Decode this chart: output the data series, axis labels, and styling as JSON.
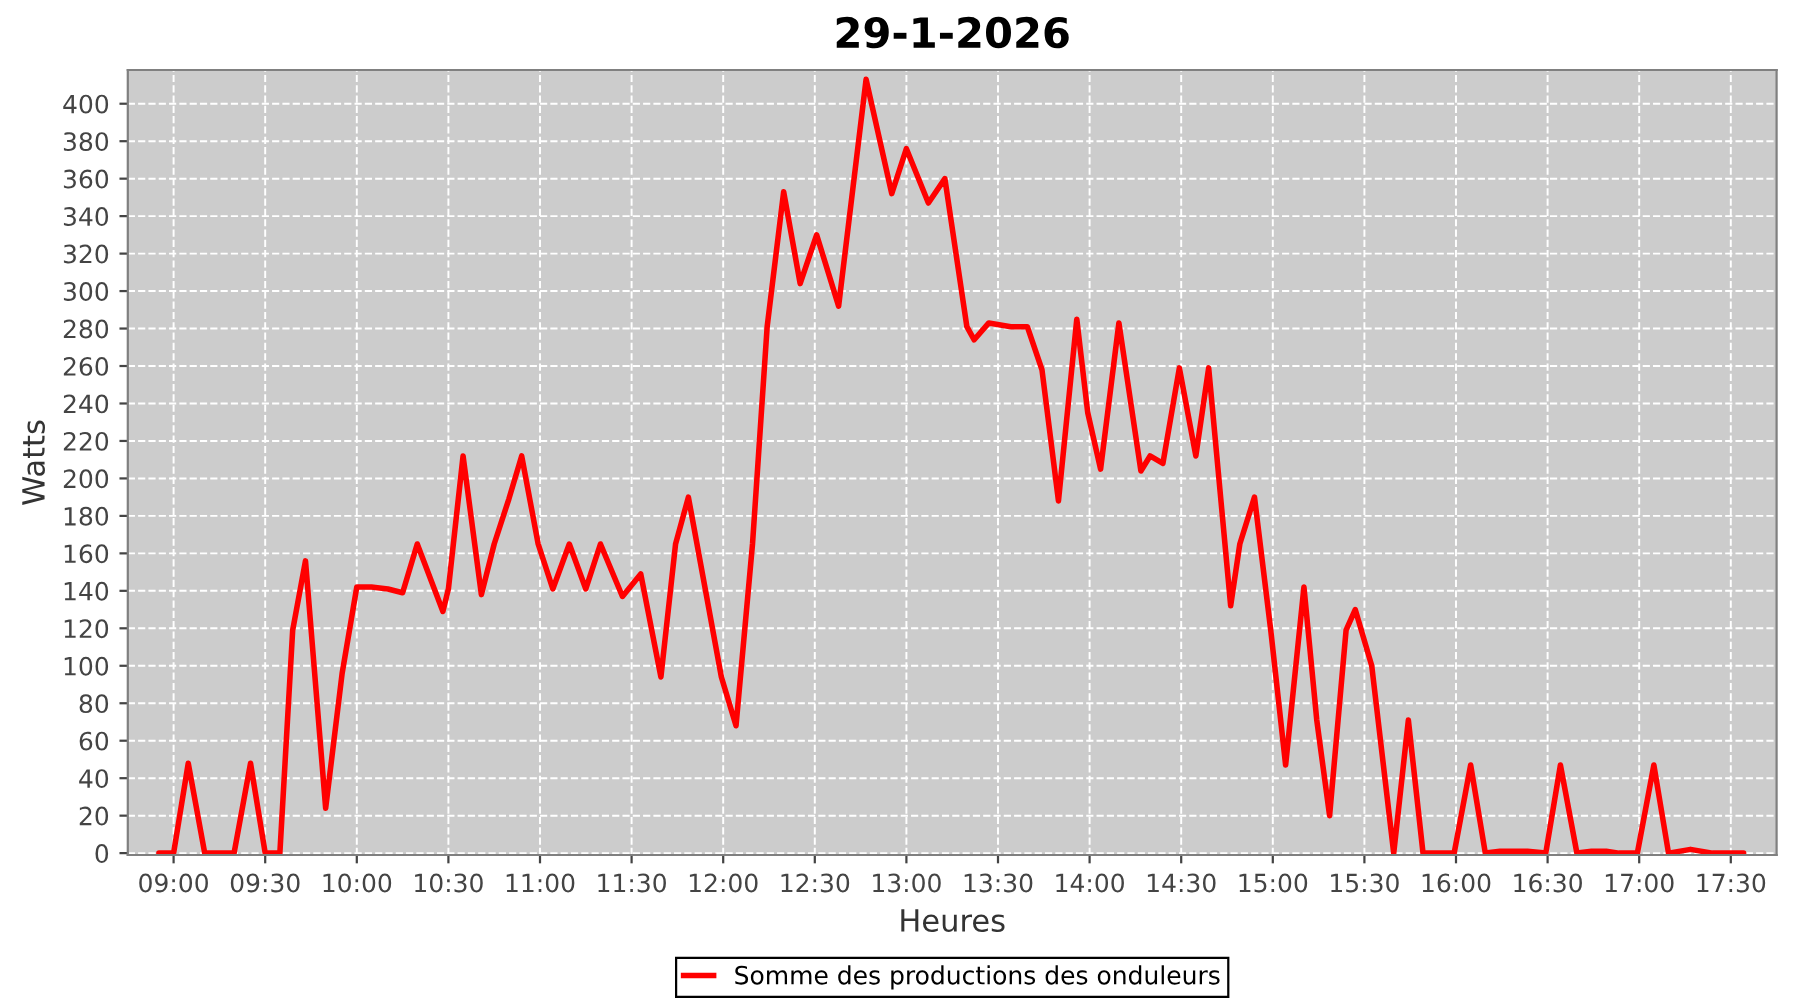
{
  "chart_data": {
    "type": "line",
    "title": "29-1-2026",
    "xlabel": "Heures",
    "ylabel": "Watts",
    "xlim": [
      8.75,
      17.75
    ],
    "ylim": [
      -1,
      418
    ],
    "xticks": [
      {
        "value": 9,
        "label": "09:00"
      },
      {
        "value": 9.5,
        "label": "09:30"
      },
      {
        "value": 10,
        "label": "10:00"
      },
      {
        "value": 10.5,
        "label": "10:30"
      },
      {
        "value": 11,
        "label": "11:00"
      },
      {
        "value": 11.5,
        "label": "11:30"
      },
      {
        "value": 12,
        "label": "12:00"
      },
      {
        "value": 12.5,
        "label": "12:30"
      },
      {
        "value": 13,
        "label": "13:00"
      },
      {
        "value": 13.5,
        "label": "13:30"
      },
      {
        "value": 14,
        "label": "14:00"
      },
      {
        "value": 14.5,
        "label": "14:30"
      },
      {
        "value": 15,
        "label": "15:00"
      },
      {
        "value": 15.5,
        "label": "15:30"
      },
      {
        "value": 16,
        "label": "16:00"
      },
      {
        "value": 16.5,
        "label": "16:30"
      },
      {
        "value": 17,
        "label": "17:00"
      },
      {
        "value": 17.5,
        "label": "17:30"
      }
    ],
    "yticks": [
      0,
      20,
      40,
      60,
      80,
      100,
      120,
      140,
      160,
      180,
      200,
      220,
      240,
      260,
      280,
      300,
      320,
      340,
      360,
      380,
      400
    ],
    "grid": true,
    "legend": "bottom",
    "line_style": "solid",
    "series": [
      {
        "name": "Somme des productions des onduleurs",
        "color": "#ff0000",
        "x": [
          8.92,
          9.0,
          9.08,
          9.17,
          9.25,
          9.33,
          9.42,
          9.5,
          9.58,
          9.65,
          9.72,
          9.83,
          9.92,
          10.0,
          10.08,
          10.17,
          10.25,
          10.33,
          10.47,
          10.5,
          10.58,
          10.68,
          10.75,
          10.83,
          10.9,
          10.99,
          11.07,
          11.16,
          11.25,
          11.33,
          11.45,
          11.55,
          11.66,
          11.74,
          11.81,
          11.9,
          11.99,
          12.07,
          12.16,
          12.24,
          12.33,
          12.42,
          12.51,
          12.63,
          12.78,
          12.92,
          13.0,
          13.12,
          13.21,
          13.33,
          13.37,
          13.45,
          13.57,
          13.66,
          13.74,
          13.83,
          13.93,
          13.99,
          14.06,
          14.16,
          14.28,
          14.33,
          14.4,
          14.49,
          14.58,
          14.65,
          14.77,
          14.82,
          14.9,
          14.99,
          15.07,
          15.17,
          15.24,
          15.31,
          15.4,
          15.45,
          15.54,
          15.66,
          15.74,
          15.82,
          15.91,
          15.99,
          16.08,
          16.16,
          16.24,
          16.32,
          16.39,
          16.49,
          16.57,
          16.66,
          16.74,
          16.82,
          16.89,
          16.99,
          17.08,
          17.16,
          17.28,
          17.4,
          17.48,
          17.57
        ],
        "values": [
          0,
          0,
          48,
          0,
          0,
          0,
          48,
          0,
          0,
          119,
          156,
          24,
          96,
          142,
          142,
          141,
          139,
          165,
          129,
          141,
          212,
          138,
          165,
          189,
          212,
          165,
          141,
          165,
          141,
          165,
          137,
          149,
          94,
          165,
          190,
          142,
          94,
          68,
          165,
          281,
          353,
          304,
          330,
          292,
          413,
          352,
          376,
          347,
          360,
          281,
          274,
          283,
          281,
          281,
          258,
          188,
          285,
          235,
          205,
          283,
          204,
          212,
          208,
          259,
          212,
          259,
          132,
          165,
          190,
          118,
          47,
          142,
          71,
          20,
          119,
          130,
          100,
          0,
          71,
          0,
          0,
          0,
          47,
          0,
          1,
          1,
          1,
          0,
          47,
          0,
          1,
          1,
          0,
          0,
          47,
          0,
          2,
          0,
          0,
          0
        ]
      }
    ]
  }
}
